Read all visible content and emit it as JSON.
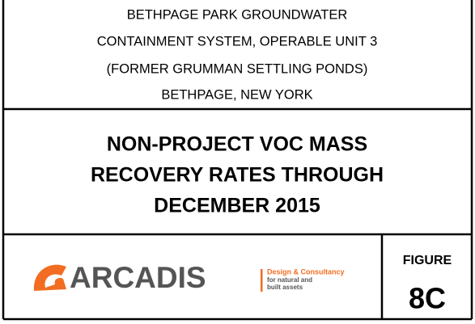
{
  "header": {
    "lines": [
      "BETHPAGE PARK GROUNDWATER",
      "CONTAINMENT SYSTEM, OPERABLE UNIT 3",
      "(FORMER GRUMMAN SETTLING PONDS)",
      "BETHPAGE, NEW YORK"
    ]
  },
  "title": {
    "lines": [
      "NON-PROJECT VOC MASS",
      "RECOVERY RATES THROUGH",
      "DECEMBER 2015"
    ]
  },
  "logo": {
    "name": "ARCADIS",
    "tagline": [
      "Design & Consultancy",
      "for natural and",
      "built assets"
    ]
  },
  "figure": {
    "label": "FIGURE",
    "number": "8C"
  }
}
